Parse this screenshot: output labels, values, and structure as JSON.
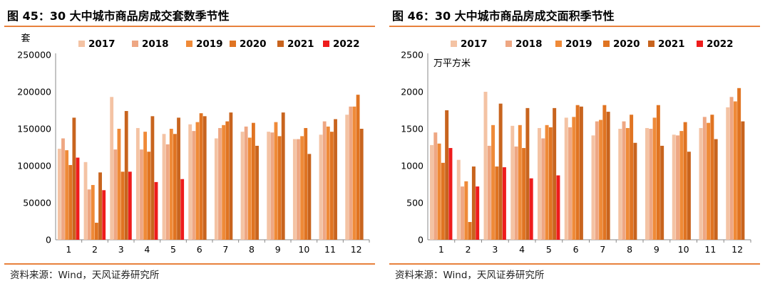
{
  "source_text": "资料来源：Wind，天风证券研究所",
  "series_colors": [
    "#f4c3a4",
    "#eea783",
    "#ef8a38",
    "#e07422",
    "#c8641e",
    "#ee1c1c"
  ],
  "chart_data": [
    {
      "type": "bar",
      "title": "图 45：30 大中城市商品房成交套数季节性",
      "ylabel": "套",
      "xlabel": "",
      "categories": [
        "1",
        "2",
        "3",
        "4",
        "5",
        "6",
        "7",
        "8",
        "9",
        "10",
        "11",
        "12"
      ],
      "ylim": [
        0,
        250000
      ],
      "yticks": [
        0,
        50000,
        100000,
        150000,
        200000,
        250000
      ],
      "ytick_labels": [
        "0",
        "50000",
        "100000",
        "150000",
        "200000",
        "250000"
      ],
      "legend_position": "top",
      "series": [
        {
          "name": "2017",
          "values": [
            123000,
            105000,
            193000,
            151000,
            143000,
            156000,
            137000,
            146000,
            146000,
            136000,
            142000,
            169000
          ]
        },
        {
          "name": "2018",
          "values": [
            137000,
            68000,
            122000,
            122000,
            129000,
            147000,
            151000,
            153000,
            145000,
            136000,
            160000,
            180000
          ]
        },
        {
          "name": "2019",
          "values": [
            121000,
            74000,
            150000,
            146000,
            150000,
            159000,
            155000,
            138000,
            159000,
            140000,
            153000,
            180000
          ]
        },
        {
          "name": "2020",
          "values": [
            101000,
            23000,
            92000,
            119000,
            143000,
            171000,
            160000,
            158000,
            140000,
            151000,
            146000,
            196000
          ]
        },
        {
          "name": "2021",
          "values": [
            165000,
            91000,
            174000,
            167000,
            165000,
            167000,
            172000,
            127000,
            172000,
            116000,
            163000,
            150000
          ]
        },
        {
          "name": "2022",
          "values": [
            111000,
            67000,
            92000,
            78000,
            82000,
            null,
            null,
            null,
            null,
            null,
            null,
            null
          ]
        }
      ]
    },
    {
      "type": "bar",
      "title": "图 46：30 大中城市商品房成交面积季节性",
      "ylabel": "万平方米",
      "xlabel": "",
      "categories": [
        "1",
        "2",
        "3",
        "4",
        "5",
        "6",
        "7",
        "8",
        "9",
        "10",
        "11",
        "12"
      ],
      "ylim": [
        0,
        2500
      ],
      "yticks": [
        0,
        500,
        1000,
        1500,
        2000,
        2500
      ],
      "ytick_labels": [
        "0",
        "500",
        "1000",
        "1500",
        "2000",
        "2500"
      ],
      "legend_position": "top",
      "series": [
        {
          "name": "2017",
          "values": [
            1280,
            1080,
            2000,
            1540,
            1510,
            1650,
            1410,
            1500,
            1510,
            1420,
            1510,
            1790
          ]
        },
        {
          "name": "2018",
          "values": [
            1450,
            720,
            1270,
            1260,
            1370,
            1520,
            1600,
            1600,
            1500,
            1410,
            1660,
            1930
          ]
        },
        {
          "name": "2019",
          "values": [
            1300,
            790,
            1550,
            1550,
            1550,
            1660,
            1620,
            1510,
            1650,
            1470,
            1580,
            1870
          ]
        },
        {
          "name": "2020",
          "values": [
            1040,
            240,
            990,
            1240,
            1520,
            1820,
            1820,
            1690,
            1820,
            1590,
            1690,
            2050
          ]
        },
        {
          "name": "2021",
          "values": [
            1750,
            990,
            1840,
            1780,
            1780,
            1800,
            1730,
            1310,
            1270,
            1190,
            1360,
            1600
          ]
        },
        {
          "name": "2022",
          "values": [
            1240,
            720,
            980,
            830,
            870,
            null,
            null,
            null,
            null,
            null,
            null,
            null
          ]
        }
      ]
    }
  ]
}
